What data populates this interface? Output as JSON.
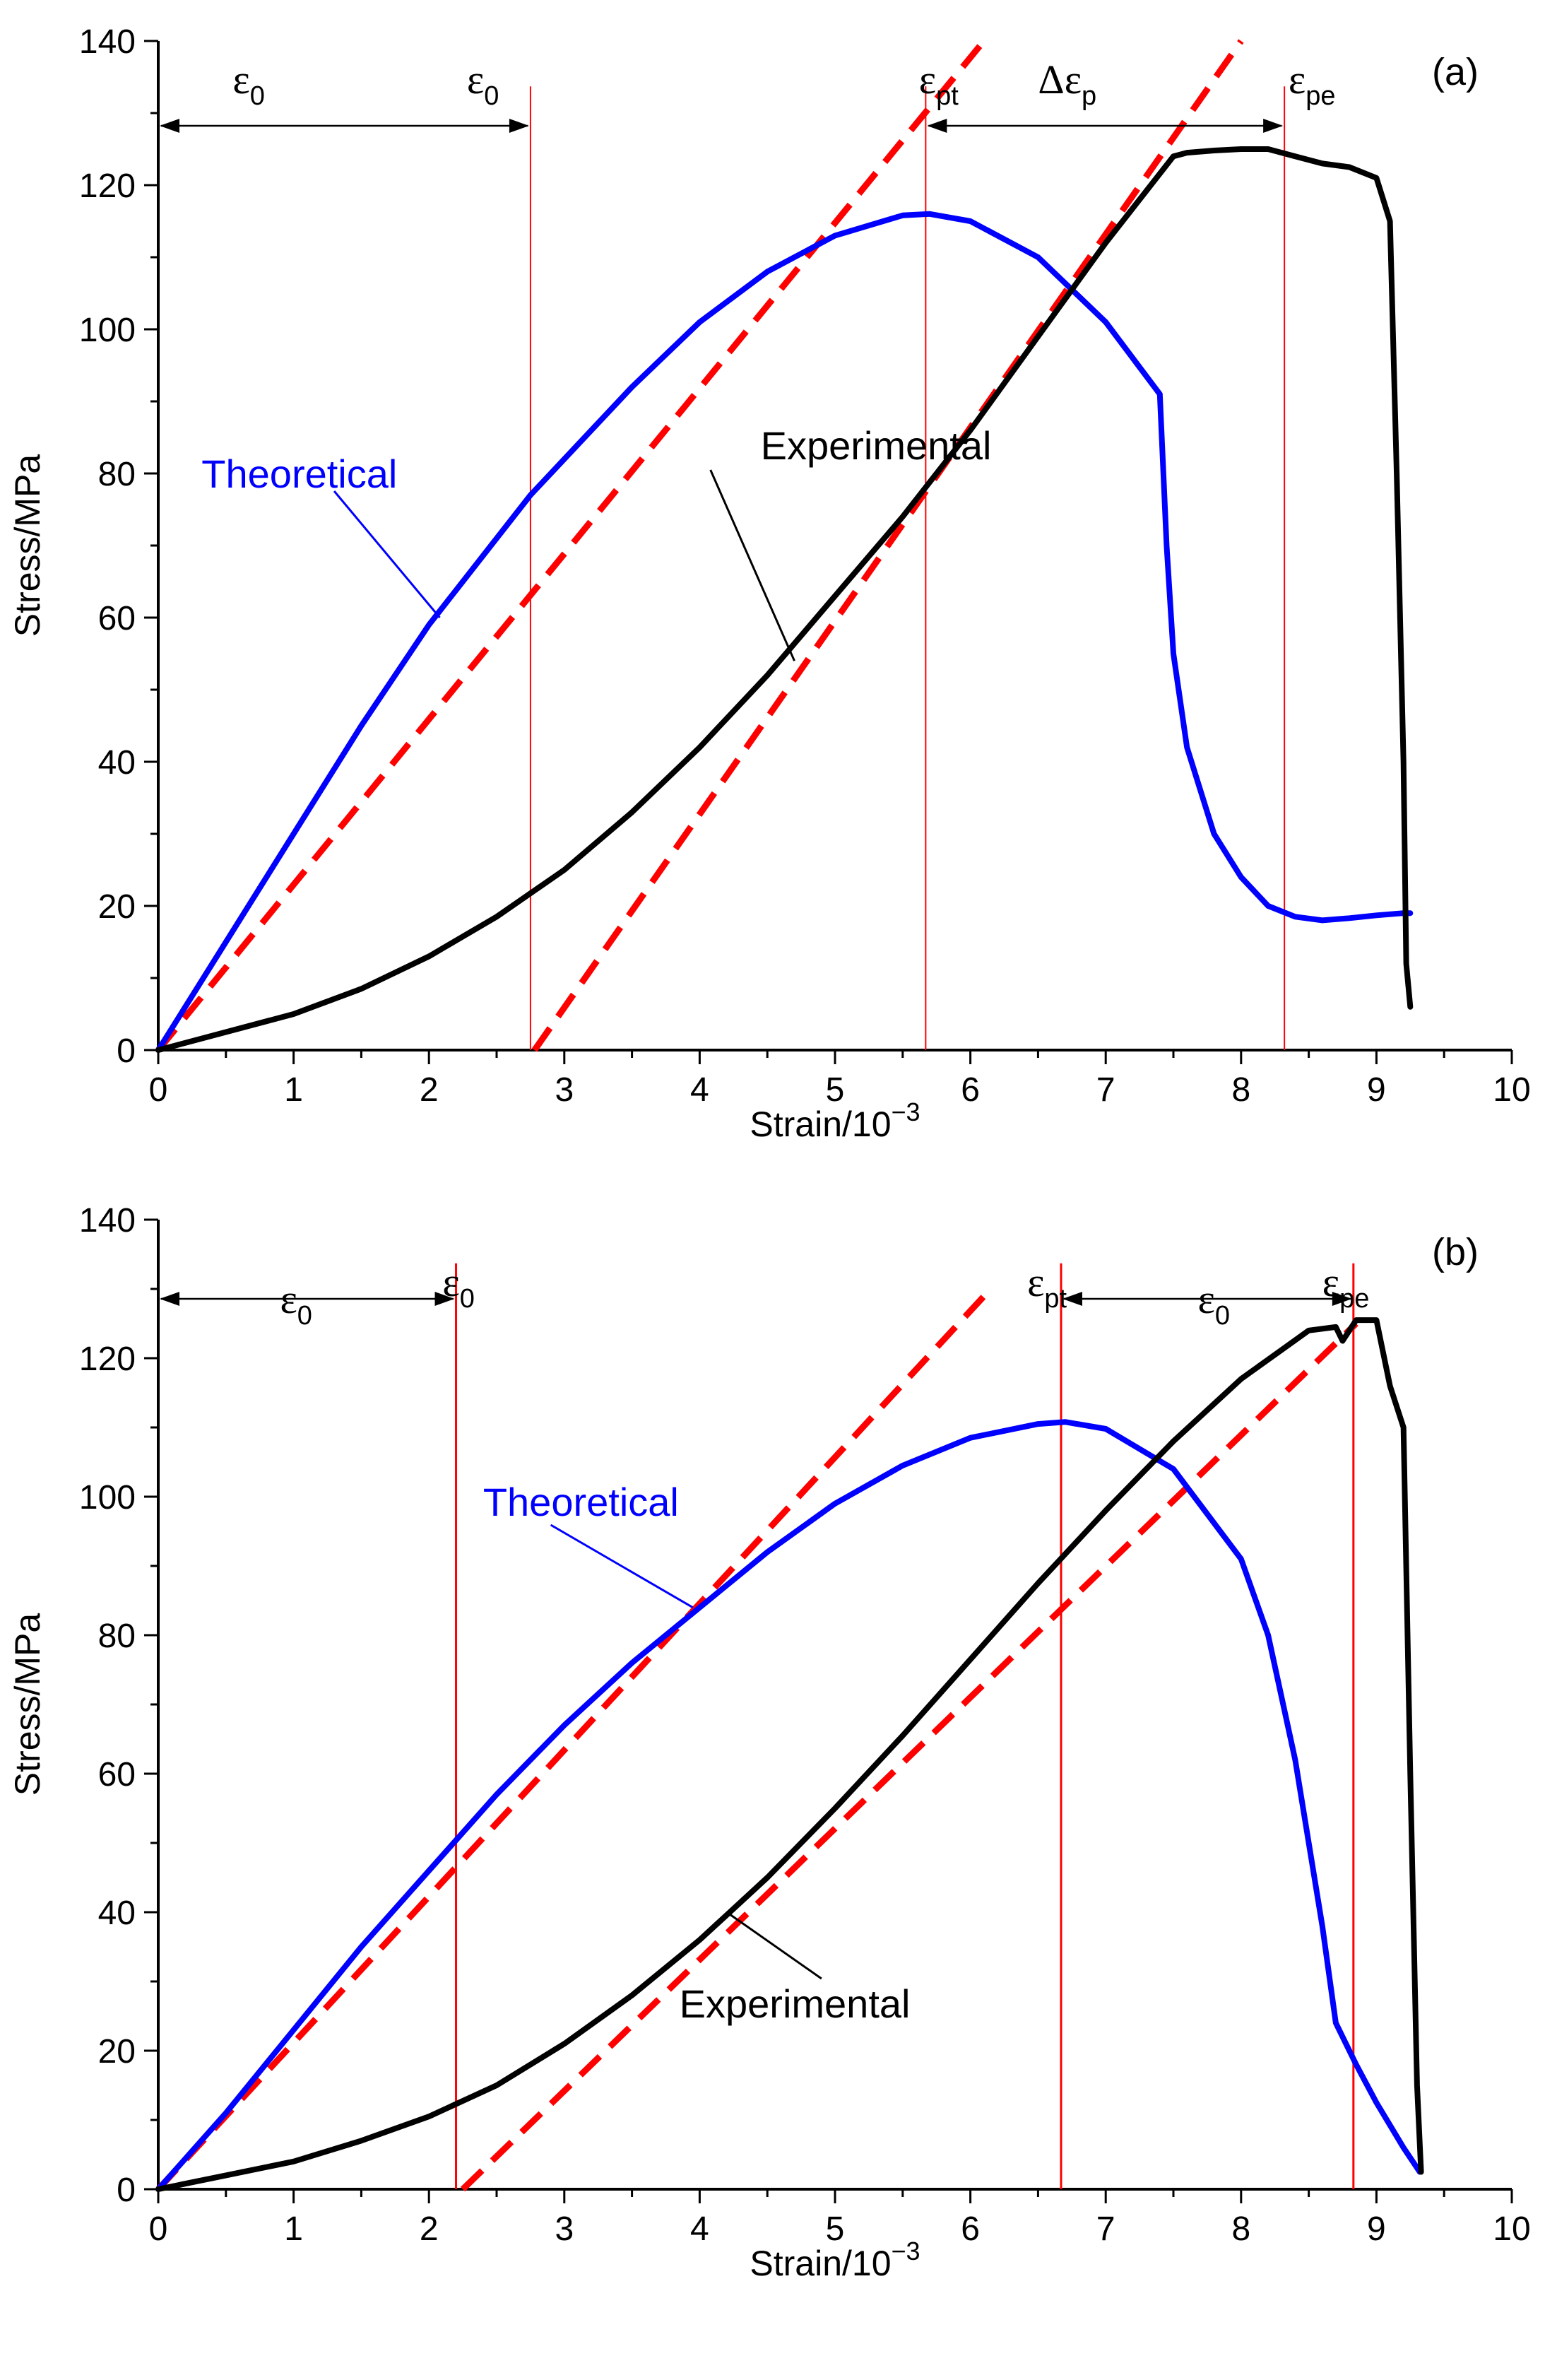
{
  "chart_data": [
    {
      "type": "line",
      "panel_label": "(a)",
      "xlabel": "Strain/10",
      "xlabel_exp": "−3",
      "ylabel": "Stress/MPa",
      "xlim": [
        0,
        10
      ],
      "ylim": [
        0,
        140
      ],
      "xticks": [
        "0",
        "1",
        "2",
        "3",
        "4",
        "5",
        "6",
        "7",
        "8",
        "9",
        "10"
      ],
      "yticks": [
        "0",
        "20",
        "40",
        "60",
        "80",
        "100",
        "120",
        "140"
      ],
      "grid": false,
      "series": [
        {
          "name": "Theoretical",
          "color": "#0000ff",
          "x": [
            0,
            0.5,
            1.0,
            1.5,
            2.0,
            2.5,
            2.75,
            3.0,
            3.5,
            4.0,
            4.5,
            5.0,
            5.5,
            5.7,
            6.0,
            6.5,
            7.0,
            7.2,
            7.4,
            7.45,
            7.5,
            7.6,
            7.8,
            8.0,
            8.2,
            8.4,
            8.6,
            8.8,
            9.0,
            9.2,
            9.25
          ],
          "y": [
            0,
            15,
            30,
            45,
            59,
            71,
            77,
            82,
            92,
            101,
            108,
            113,
            115.8,
            116,
            115,
            110,
            101,
            96,
            91,
            70,
            55,
            42,
            30,
            24,
            20,
            18.5,
            18,
            18.3,
            18.7,
            19,
            19
          ]
        },
        {
          "name": "Experimental",
          "color": "#000000",
          "x": [
            0,
            0.5,
            1.0,
            1.5,
            2.0,
            2.5,
            3.0,
            3.5,
            4.0,
            4.5,
            5.0,
            5.5,
            6.0,
            6.5,
            7.0,
            7.5,
            7.6,
            7.8,
            8.0,
            8.2,
            8.3,
            8.4,
            8.6,
            8.8,
            9.0,
            9.1,
            9.15,
            9.2,
            9.22,
            9.25
          ],
          "y": [
            0,
            2.5,
            5,
            8.5,
            13,
            18.5,
            25,
            33,
            42,
            52,
            63,
            74,
            86,
            99,
            112,
            124,
            124.5,
            124.8,
            125,
            125,
            124.5,
            124,
            123,
            122.5,
            121,
            115,
            80,
            40,
            12,
            6
          ]
        }
      ],
      "tangent_lines": [
        {
          "color": "#ff0000",
          "style": "dashed",
          "x": [
            0,
            6.1
          ],
          "y": [
            0,
            140
          ]
        },
        {
          "color": "#ff0000",
          "style": "dashed",
          "x": [
            2.78,
            8.0
          ],
          "y": [
            0,
            140
          ]
        }
      ],
      "vertical_markers": [
        {
          "x": 2.75,
          "color": "#ff0000"
        },
        {
          "x": 5.67,
          "color": "#ff0000"
        },
        {
          "x": 8.32,
          "color": "#ff0000"
        }
      ],
      "annotations": [
        {
          "sym": "ε",
          "sub": "0"
        },
        {
          "sym": "ε",
          "sub": "0"
        },
        {
          "sym": "ε",
          "sub": "pt"
        },
        {
          "sym": "Δε",
          "sub": "p"
        },
        {
          "sym": "ε",
          "sub": "pe"
        }
      ],
      "series_labels": [
        "Theoretical",
        "Experimental"
      ]
    },
    {
      "type": "line",
      "panel_label": "(b)",
      "xlabel": "Strain/10",
      "xlabel_exp": "−3",
      "ylabel": "Stress/MPa",
      "xlim": [
        0,
        10
      ],
      "ylim": [
        0,
        140
      ],
      "xticks": [
        "0",
        "1",
        "2",
        "3",
        "4",
        "5",
        "6",
        "7",
        "8",
        "9",
        "10"
      ],
      "yticks": [
        "0",
        "20",
        "40",
        "60",
        "80",
        "100",
        "120",
        "140"
      ],
      "grid": false,
      "series": [
        {
          "name": "Theoretical",
          "color": "#0000ff",
          "x": [
            0,
            0.5,
            1.0,
            1.5,
            2.0,
            2.5,
            3.0,
            3.5,
            4.0,
            4.5,
            5.0,
            5.5,
            6.0,
            6.5,
            6.7,
            7.0,
            7.5,
            8.0,
            8.2,
            8.4,
            8.6,
            8.7,
            8.85,
            9.0,
            9.2,
            9.32
          ],
          "y": [
            0,
            11,
            23,
            35,
            46,
            57,
            67,
            76,
            84,
            92,
            99,
            104.5,
            108.5,
            110.5,
            110.8,
            109.8,
            104,
            91,
            80,
            62,
            38,
            24,
            18,
            12.5,
            6,
            2.5
          ]
        },
        {
          "name": "Experimental",
          "color": "#000000",
          "x": [
            0,
            0.5,
            1.0,
            1.5,
            2.0,
            2.5,
            3.0,
            3.5,
            4.0,
            4.5,
            5.0,
            5.5,
            6.0,
            6.5,
            7.0,
            7.5,
            8.0,
            8.5,
            8.7,
            8.75,
            8.85,
            9.0,
            9.1,
            9.2,
            9.25,
            9.3,
            9.33
          ],
          "y": [
            0,
            2,
            4,
            7,
            10.5,
            15,
            21,
            28,
            36,
            45,
            55,
            65.5,
            76.5,
            87.5,
            98,
            108,
            117,
            124,
            124.5,
            122.5,
            125.5,
            125.5,
            116,
            110,
            60,
            15,
            2.5
          ]
        }
      ],
      "tangent_lines": [
        {
          "color": "#ff0000",
          "style": "dashed",
          "x": [
            0,
            6.15
          ],
          "y": [
            0,
            130
          ]
        },
        {
          "color": "#ff0000",
          "style": "dashed",
          "x": [
            2.25,
            8.85
          ],
          "y": [
            0,
            125
          ]
        }
      ],
      "vertical_markers": [
        {
          "x": 2.2,
          "color": "#ff0000"
        },
        {
          "x": 6.67,
          "color": "#ff0000"
        },
        {
          "x": 8.83,
          "color": "#ff0000"
        }
      ],
      "annotations": [
        {
          "sym": "ε",
          "sub": "0"
        },
        {
          "sym": "ε",
          "sub": "0"
        },
        {
          "sym": "ε",
          "sub": "pt"
        },
        {
          "sym": "ε",
          "sub": "0"
        },
        {
          "sym": "ε",
          "sub": "pe"
        }
      ],
      "series_labels": [
        "Theoretical",
        "Experimental"
      ]
    }
  ]
}
